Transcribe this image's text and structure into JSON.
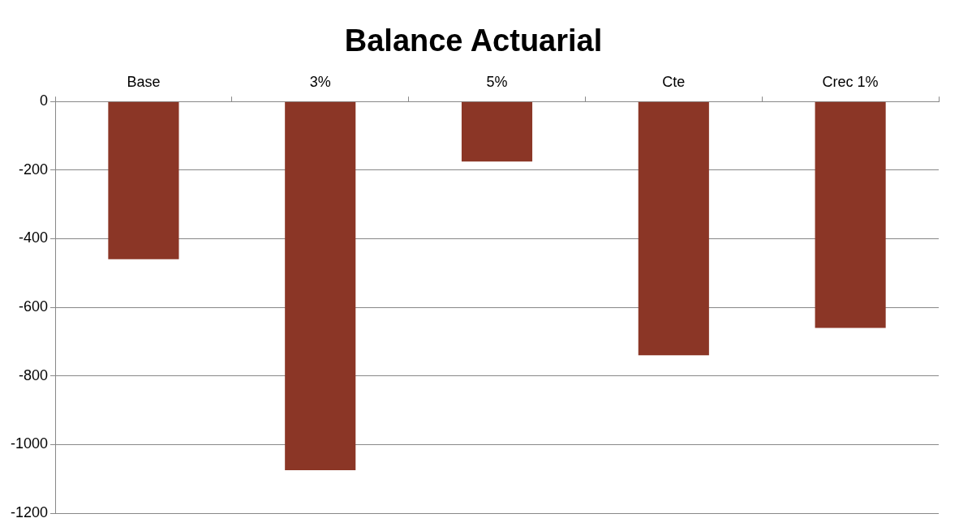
{
  "chart_data": {
    "type": "bar",
    "title": "Balance Actuarial",
    "categories": [
      "Base",
      "3%",
      "5%",
      "Cte",
      "Crec 1%"
    ],
    "values": [
      -460,
      -1075,
      -175,
      -740,
      -660
    ],
    "color": "#8b3626",
    "ylim": [
      -1200,
      0
    ],
    "yticks": [
      -1200,
      -1000,
      -800,
      -600,
      -400,
      -200,
      0
    ],
    "grid": "y",
    "legend": false
  }
}
